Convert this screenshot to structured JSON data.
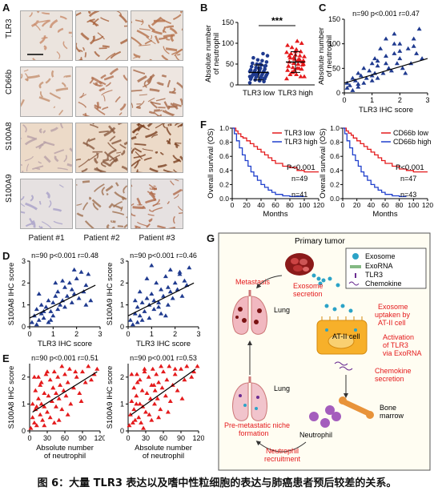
{
  "panels": {
    "A": {
      "label": "A",
      "rows": [
        "TLR3",
        "CD66b",
        "S100A8",
        "S100A9"
      ],
      "cols": [
        "Patient #1",
        "Patient #2",
        "Patient #3"
      ]
    },
    "B": {
      "label": "B"
    },
    "C": {
      "label": "C"
    },
    "D": {
      "label": "D"
    },
    "E": {
      "label": "E"
    },
    "F": {
      "label": "F"
    },
    "G": {
      "label": "G"
    }
  },
  "chart_data": [
    {
      "id": "B",
      "type": "scatter",
      "ylabel": "Absolute number of neutrophil",
      "categories": [
        "TLR3 low",
        "TLR3 high"
      ],
      "ylim": [
        0,
        150
      ],
      "yticks": [
        0,
        50,
        100,
        150
      ],
      "significance": "***",
      "series": [
        {
          "name": "TLR3 low",
          "mean": 30,
          "sd": 18,
          "values": [
            5,
            8,
            10,
            12,
            14,
            15,
            16,
            18,
            19,
            20,
            21,
            22,
            23,
            24,
            25,
            26,
            27,
            28,
            29,
            30,
            31,
            32,
            33,
            34,
            35,
            36,
            38,
            40,
            42,
            44,
            46,
            48,
            50,
            52,
            55,
            58,
            60,
            65,
            70,
            75,
            40,
            30,
            20,
            15,
            10,
            25,
            35,
            45,
            50
          ]
        },
        {
          "name": "TLR3 high",
          "mean": 55,
          "sd": 25,
          "values": [
            15,
            20,
            25,
            30,
            35,
            38,
            40,
            42,
            45,
            48,
            50,
            52,
            55,
            58,
            60,
            62,
            65,
            68,
            70,
            72,
            75,
            78,
            80,
            85,
            90,
            95,
            100,
            105,
            30,
            45,
            55,
            60,
            65,
            70,
            50,
            40,
            35,
            25,
            20,
            60,
            80
          ]
        }
      ]
    },
    {
      "id": "C",
      "type": "scatter",
      "stats": "n=90  p<0.001  r=0.47",
      "xlabel": "TLR3 IHC score",
      "ylabel": "Absolute number of neutrophil",
      "xlim": [
        0,
        3
      ],
      "ylim": [
        0,
        150
      ],
      "xticks": [
        0,
        1,
        2,
        3
      ],
      "yticks": [
        0,
        50,
        100,
        150
      ],
      "x": [
        0.1,
        0.1,
        0.2,
        0.3,
        0.3,
        0.4,
        0.5,
        0.5,
        0.6,
        0.7,
        0.7,
        0.8,
        0.9,
        1.0,
        1.0,
        1.1,
        1.1,
        1.2,
        1.2,
        1.3,
        1.4,
        1.5,
        1.5,
        1.6,
        1.7,
        1.8,
        1.8,
        1.9,
        2.0,
        2.0,
        2.1,
        2.2,
        2.3,
        2.4,
        2.5,
        2.6,
        2.7,
        2.8,
        0.5,
        1.0,
        1.5,
        2.0,
        2.5,
        1.2,
        1.8
      ],
      "y": [
        10,
        20,
        15,
        30,
        5,
        25,
        40,
        12,
        35,
        20,
        50,
        30,
        45,
        60,
        25,
        40,
        70,
        55,
        30,
        90,
        40,
        60,
        110,
        50,
        45,
        80,
        120,
        60,
        70,
        100,
        50,
        40,
        90,
        60,
        110,
        80,
        130,
        70,
        18,
        35,
        75,
        85,
        95,
        65,
        100
      ],
      "trend": [
        [
          0,
          20
        ],
        [
          3,
          70
        ]
      ]
    },
    {
      "id": "D1",
      "type": "scatter",
      "stats": "n=90  p<0.001  r=0.48",
      "xlabel": "TLR3 IHC score",
      "ylabel": "S100A8 IHC score",
      "xlim": [
        0,
        3
      ],
      "ylim": [
        0,
        3
      ],
      "xticks": [
        0,
        1,
        2,
        3
      ],
      "yticks": [
        0,
        1,
        2,
        3
      ],
      "x": [
        0.1,
        0.2,
        0.3,
        0.3,
        0.4,
        0.5,
        0.5,
        0.6,
        0.7,
        0.8,
        0.8,
        0.9,
        1.0,
        1.0,
        1.1,
        1.2,
        1.2,
        1.3,
        1.4,
        1.5,
        1.5,
        1.6,
        1.7,
        1.8,
        1.8,
        1.9,
        2.0,
        2.1,
        2.2,
        2.3,
        2.4,
        2.5,
        2.6,
        0.4,
        0.9,
        1.4,
        1.9,
        2.4,
        0.6,
        1.1
      ],
      "y": [
        0.2,
        0.5,
        0.1,
        0.8,
        0.3,
        0.6,
        1.0,
        0.4,
        0.9,
        0.2,
        1.2,
        0.7,
        1.1,
        0.5,
        1.4,
        0.8,
        1.6,
        1.0,
        1.2,
        1.8,
        0.9,
        1.4,
        2.0,
        1.1,
        1.7,
        1.5,
        2.2,
        1.3,
        2.5,
        1.6,
        1.9,
        2.4,
        1.2,
        1.5,
        0.3,
        2.1,
        2.6,
        1.0,
        0.7,
        2.0
      ],
      "trend": [
        [
          0,
          0.4
        ],
        [
          2.8,
          1.9
        ]
      ]
    },
    {
      "id": "D2",
      "type": "scatter",
      "stats": "n=90  p<0.001  r=0.46",
      "xlabel": "TLR3 IHC score",
      "ylabel": "S100A9 IHC score",
      "xlim": [
        0,
        3
      ],
      "ylim": [
        0,
        3
      ],
      "xticks": [
        0,
        1,
        2,
        3
      ],
      "yticks": [
        0,
        1,
        2,
        3
      ],
      "x": [
        0.1,
        0.2,
        0.3,
        0.4,
        0.4,
        0.5,
        0.6,
        0.6,
        0.7,
        0.8,
        0.9,
        0.9,
        1.0,
        1.1,
        1.1,
        1.2,
        1.3,
        1.4,
        1.4,
        1.5,
        1.6,
        1.7,
        1.8,
        1.8,
        1.9,
        2.0,
        2.1,
        2.2,
        2.3,
        2.4,
        2.5,
        2.6,
        0.3,
        0.8,
        1.3,
        1.7,
        2.2,
        0.5,
        1.0,
        1.6
      ],
      "y": [
        0.3,
        0.1,
        0.6,
        0.2,
        0.9,
        0.5,
        0.3,
        1.1,
        0.7,
        1.3,
        0.4,
        1.0,
        1.5,
        0.8,
        1.2,
        2.0,
        1.1,
        0.6,
        1.7,
        1.4,
        2.3,
        1.0,
        1.6,
        2.6,
        1.3,
        2.0,
        1.7,
        2.4,
        1.4,
        2.1,
        1.9,
        2.7,
        1.2,
        2.2,
        0.9,
        1.8,
        2.5,
        1.6,
        2.8,
        0.5
      ],
      "trend": [
        [
          0,
          0.5
        ],
        [
          2.8,
          2.0
        ]
      ]
    },
    {
      "id": "E1",
      "type": "scatter",
      "stats": "n=90  p<0.001  r=0.51",
      "xlabel": "Absolute number of neutrophil",
      "ylabel": "S100A8 IHC score",
      "xlim": [
        0,
        120
      ],
      "ylim": [
        0,
        2.5
      ],
      "xticks": [
        0,
        30,
        60,
        90,
        120
      ],
      "yticks": [
        0,
        1,
        2
      ],
      "x": [
        2,
        5,
        5,
        8,
        10,
        10,
        12,
        15,
        15,
        18,
        20,
        20,
        22,
        25,
        25,
        28,
        30,
        32,
        35,
        35,
        38,
        40,
        42,
        45,
        45,
        48,
        50,
        52,
        55,
        58,
        60,
        62,
        65,
        68,
        70,
        75,
        80,
        85,
        90,
        95,
        100,
        105,
        110,
        115,
        18,
        30,
        42,
        55,
        65,
        78,
        88,
        8,
        12,
        25,
        40,
        50
      ],
      "y": [
        0.1,
        0.5,
        1.0,
        0.3,
        1.5,
        0.8,
        0.2,
        1.2,
        2.0,
        0.6,
        1.0,
        1.8,
        0.4,
        1.4,
        0.9,
        2.1,
        0.7,
        1.3,
        1.9,
        0.5,
        1.1,
        1.6,
        2.2,
        0.9,
        1.4,
        2.0,
        1.2,
        1.7,
        0.8,
        1.5,
        2.1,
        1.3,
        1.8,
        2.3,
        1.0,
        1.6,
        2.0,
        1.4,
        2.2,
        1.8,
        2.4,
        1.9,
        2.1,
        2.3,
        1.7,
        2.2,
        0.3,
        2.4,
        0.6,
        2.2,
        1.1,
        2.0,
        0.9,
        0.2,
        1.6,
        0.4
      ],
      "trend": [
        [
          5,
          0.7
        ],
        [
          115,
          2.2
        ]
      ]
    },
    {
      "id": "E2",
      "type": "scatter",
      "stats": "n=90  p<0.001  r=0.53",
      "xlabel": "Absolute number of neutrophil",
      "ylabel": "S100A9 IHC score",
      "xlim": [
        0,
        120
      ],
      "ylim": [
        0,
        2.5
      ],
      "xticks": [
        0,
        30,
        60,
        90,
        120
      ],
      "yticks": [
        0,
        1,
        2
      ],
      "x": [
        2,
        4,
        6,
        8,
        10,
        10,
        12,
        14,
        15,
        18,
        20,
        20,
        22,
        24,
        25,
        28,
        30,
        32,
        35,
        36,
        38,
        40,
        42,
        45,
        46,
        48,
        50,
        52,
        55,
        58,
        60,
        64,
        66,
        70,
        72,
        76,
        80,
        84,
        90,
        96,
        100,
        108,
        112,
        118,
        16,
        28,
        40,
        56,
        68,
        80,
        92,
        6,
        14,
        26,
        44,
        52
      ],
      "y": [
        0.2,
        0.6,
        1.1,
        0.3,
        1.6,
        0.8,
        0.4,
        1.3,
        2.1,
        0.5,
        1.0,
        1.9,
        0.3,
        1.5,
        0.9,
        2.2,
        0.7,
        1.4,
        2.0,
        0.6,
        1.2,
        1.7,
        2.3,
        1.0,
        1.5,
        2.1,
        1.2,
        1.8,
        0.8,
        1.6,
        2.2,
        1.3,
        1.9,
        2.4,
        1.1,
        1.7,
        2.1,
        1.5,
        2.3,
        1.9,
        2.4,
        2.0,
        2.2,
        2.4,
        1.8,
        2.3,
        0.4,
        2.4,
        0.7,
        2.3,
        1.2,
        2.1,
        1.0,
        0.1,
        1.7,
        0.5
      ],
      "trend": [
        [
          5,
          0.6
        ],
        [
          115,
          2.3
        ]
      ]
    },
    {
      "id": "F1",
      "type": "line",
      "ylabel": "Overall survival (OS)",
      "xlabel": "Months",
      "xlim": [
        0,
        120
      ],
      "ylim": [
        0,
        1.0
      ],
      "xticks": [
        0,
        20,
        40,
        60,
        80,
        100,
        120
      ],
      "yticks": [
        0,
        0.2,
        0.4,
        0.6,
        0.8,
        1.0
      ],
      "pvalue": "P<0.001",
      "series": [
        {
          "name": "TLR3 low",
          "n_label": "n=49",
          "color": "#e41a1c",
          "x": [
            0,
            5,
            8,
            12,
            15,
            20,
            25,
            30,
            35,
            40,
            45,
            50,
            55,
            60,
            70,
            80,
            90,
            100,
            120
          ],
          "y": [
            1.0,
            0.96,
            0.92,
            0.88,
            0.86,
            0.82,
            0.78,
            0.74,
            0.7,
            0.66,
            0.62,
            0.58,
            0.54,
            0.5,
            0.46,
            0.44,
            0.4,
            0.38,
            0.38
          ]
        },
        {
          "name": "TLR3 high",
          "n_label": "n=41",
          "color": "#1f3fcc",
          "x": [
            0,
            3,
            6,
            10,
            14,
            18,
            22,
            26,
            30,
            35,
            40,
            45,
            50,
            55,
            60,
            70,
            80,
            90,
            100
          ],
          "y": [
            1.0,
            0.92,
            0.82,
            0.72,
            0.62,
            0.54,
            0.46,
            0.38,
            0.32,
            0.26,
            0.2,
            0.16,
            0.12,
            0.09,
            0.06,
            0.04,
            0.03,
            0.03,
            0.03
          ]
        }
      ]
    },
    {
      "id": "F2",
      "type": "line",
      "ylabel": "Overall survival (OS)",
      "xlabel": "Months",
      "xlim": [
        0,
        120
      ],
      "ylim": [
        0,
        1.0
      ],
      "xticks": [
        0,
        20,
        40,
        60,
        80,
        100,
        120
      ],
      "yticks": [
        0,
        0.2,
        0.4,
        0.6,
        0.8,
        1.0
      ],
      "pvalue": "P<0.001",
      "series": [
        {
          "name": "CD66b low",
          "n_label": "n=47",
          "color": "#e41a1c",
          "x": [
            0,
            5,
            8,
            12,
            15,
            20,
            25,
            30,
            35,
            40,
            45,
            50,
            55,
            60,
            70,
            80,
            90,
            100,
            120
          ],
          "y": [
            1.0,
            0.96,
            0.93,
            0.9,
            0.86,
            0.82,
            0.78,
            0.74,
            0.7,
            0.66,
            0.62,
            0.58,
            0.54,
            0.5,
            0.46,
            0.42,
            0.4,
            0.38,
            0.38
          ]
        },
        {
          "name": "CD66b high",
          "n_label": "n=43",
          "color": "#1f3fcc",
          "x": [
            0,
            3,
            6,
            10,
            14,
            18,
            22,
            26,
            30,
            35,
            40,
            45,
            50,
            55,
            60,
            70,
            80,
            90
          ],
          "y": [
            1.0,
            0.92,
            0.82,
            0.72,
            0.62,
            0.54,
            0.46,
            0.38,
            0.32,
            0.26,
            0.2,
            0.16,
            0.12,
            0.09,
            0.06,
            0.04,
            0.03,
            0.03
          ]
        }
      ]
    }
  ],
  "diagram_G": {
    "title": "Primary tumor",
    "legend": [
      {
        "label": "Exosome",
        "icon": "exosome-icon"
      },
      {
        "label": "ExoRNA",
        "icon": "exorna-icon"
      },
      {
        "label": "TLR3",
        "icon": "tlr3-icon"
      },
      {
        "label": "Chemokine",
        "icon": "chemokine-icon"
      }
    ],
    "texts": {
      "metastasis": "Metastasis",
      "lung_top": "Lung",
      "lung_bottom": "Lung",
      "exosome_secretion": [
        "Exosome",
        "secretion"
      ],
      "exosome_uptake": [
        "Exosome",
        "uptaken by",
        "AT-II cell"
      ],
      "at2_cell": "AT-II cell",
      "activation": [
        "Activation",
        "of TLR3",
        "via ExoRNA"
      ],
      "chemokine_secretion": [
        "Chemokine",
        "secretion"
      ],
      "bone_marrow": [
        "Bone",
        "marrow"
      ],
      "neutrophil": "Neutrophil",
      "neutrophil_recruitment": [
        "Neutrophil",
        "recruitment"
      ],
      "pre_metastatic": [
        "Pre-metastatic niche",
        "formation"
      ]
    },
    "colors": {
      "red_text": "#e41a1c",
      "frame_bg": "#fffdf2"
    }
  },
  "caption": "图 6：大量 TLR3 表达以及嗜中性粒细胞的表达与肺癌患者预后较差的关系。"
}
